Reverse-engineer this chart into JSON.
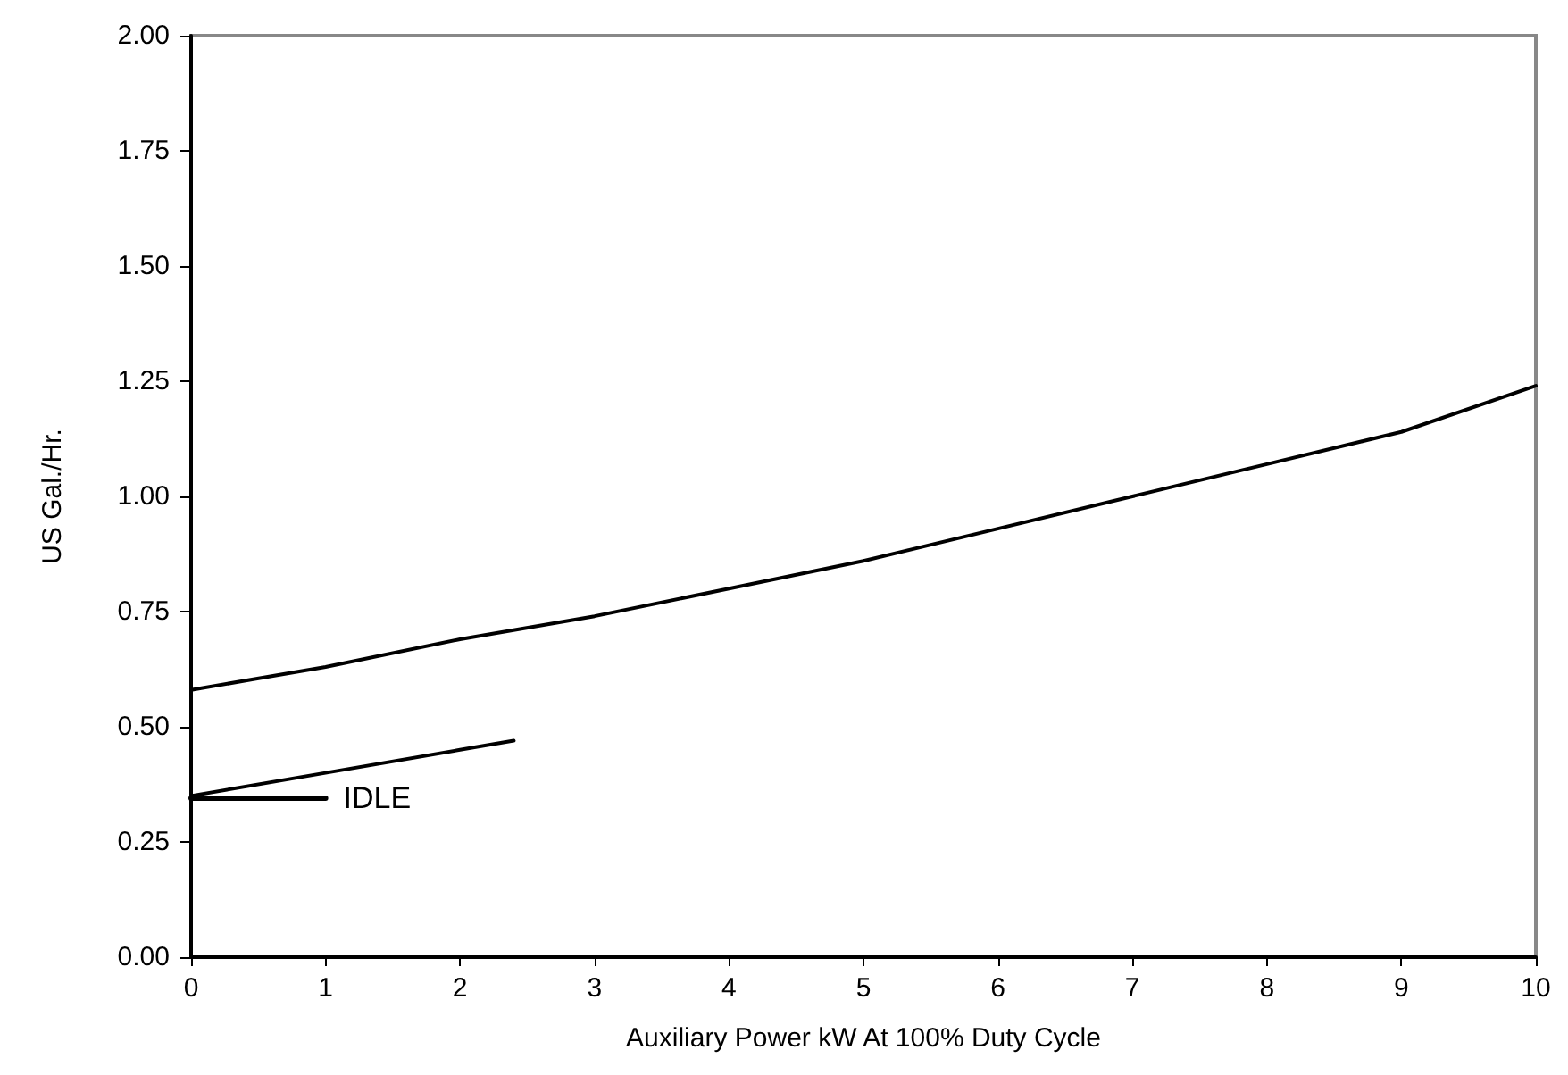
{
  "chart_data": {
    "type": "line",
    "xlabel": "Auxiliary Power kW At 100% Duty Cycle",
    "ylabel": "US Gal./Hr.",
    "xlim": [
      0,
      10
    ],
    "xticks": [
      0,
      1,
      2,
      3,
      4,
      5,
      6,
      7,
      8,
      9,
      10
    ],
    "ylim": [
      0,
      2
    ],
    "yticks": [
      {
        "value": 0,
        "label": "0.00"
      },
      {
        "value": 0.25,
        "label": "0.25"
      },
      {
        "value": 0.5,
        "label": "0.50"
      },
      {
        "value": 0.75,
        "label": "0.75"
      },
      {
        "value": 1,
        "label": "1.00"
      },
      {
        "value": 1.25,
        "label": "1.25"
      },
      {
        "value": 1.5,
        "label": "1.50"
      },
      {
        "value": 1.75,
        "label": "1.75"
      },
      {
        "value": 2,
        "label": "2.00"
      }
    ],
    "grid": false,
    "legend": false,
    "marker": "none",
    "line_style": "solid",
    "series": [
      {
        "color": "#000000",
        "x": [
          0,
          1,
          2,
          3,
          4,
          5,
          6,
          7,
          8,
          9,
          10
        ],
        "values": [
          0.58,
          0.63,
          0.69,
          0.74,
          0.8,
          0.86,
          0.93,
          1.0,
          1.07,
          1.14,
          1.24
        ]
      },
      {
        "color": "#000000",
        "x": [
          0,
          1,
          2,
          2.4
        ],
        "values": [
          0.35,
          0.4,
          0.45,
          0.47
        ]
      },
      {
        "name": "IDLE",
        "color": "#000000",
        "x": [
          0,
          1
        ],
        "values": [
          0.345,
          0.345
        ]
      }
    ]
  }
}
